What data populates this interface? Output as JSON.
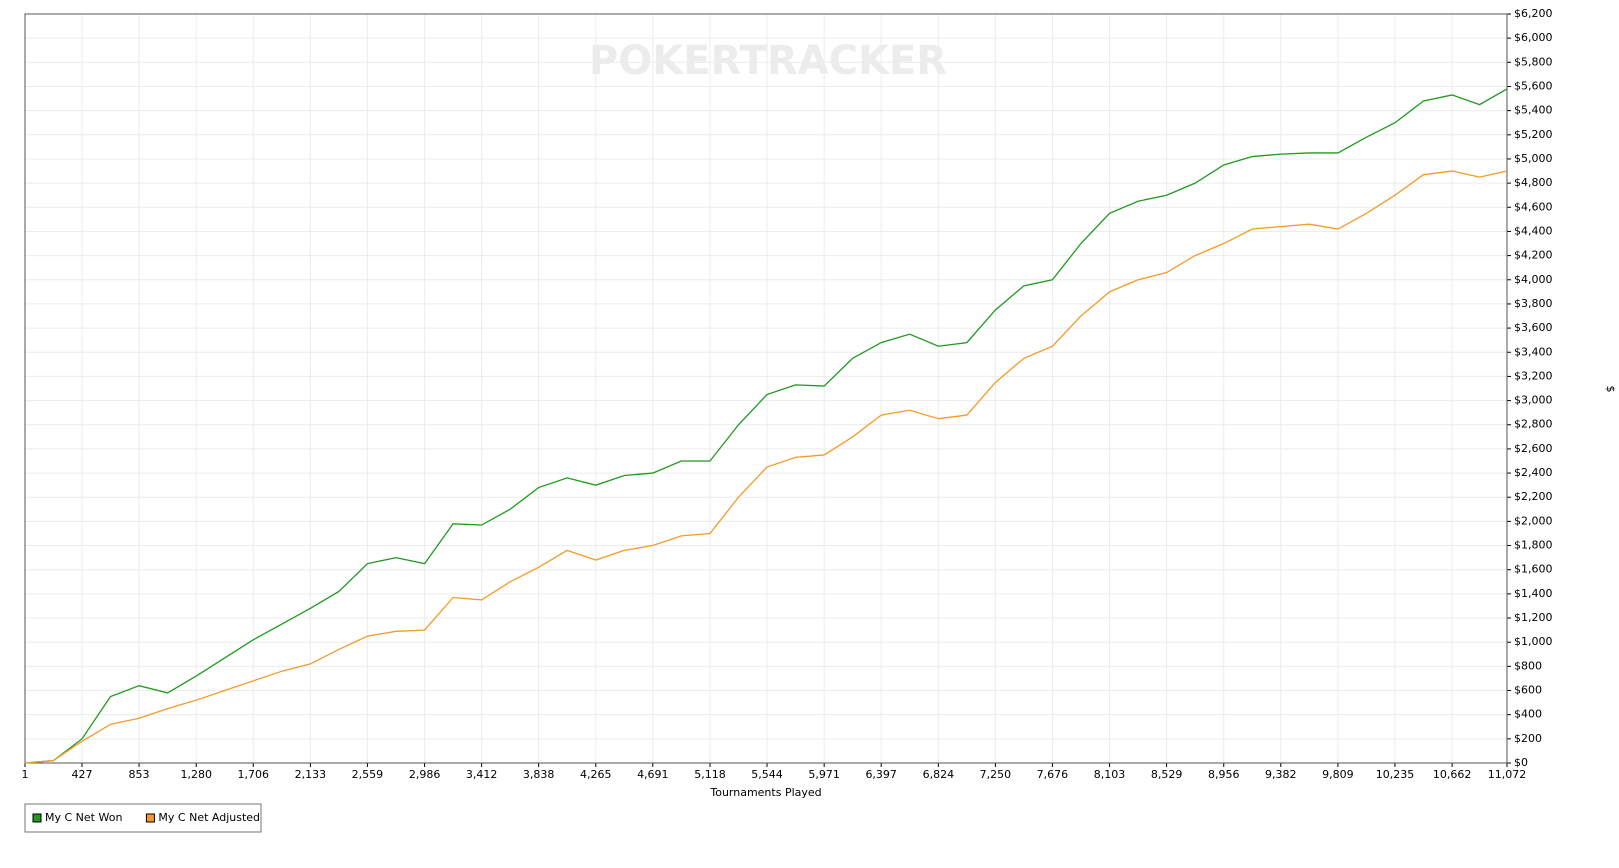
{
  "chart_data": {
    "type": "line",
    "watermark": "POKERTRACKER",
    "x_label": "Tournaments Played",
    "y_label": "$",
    "grid": true,
    "legend": "bottom-left",
    "x": [
      1,
      213,
      427,
      640,
      853,
      1066,
      1280,
      1493,
      1706,
      1920,
      2133,
      2346,
      2559,
      2772,
      2986,
      3199,
      3412,
      3625,
      3838,
      4051,
      4265,
      4478,
      4691,
      4904,
      5118,
      5331,
      5544,
      5757,
      5971,
      6184,
      6397,
      6610,
      6824,
      7037,
      7250,
      7463,
      7676,
      7889,
      8103,
      8316,
      8529,
      8742,
      8956,
      9169,
      9382,
      9595,
      9809,
      10022,
      10235,
      10448,
      10662,
      10867,
      11072
    ],
    "series": [
      {
        "name": "My C Net Won",
        "color": "#1f9a1f",
        "values": [
          0,
          20,
          200,
          550,
          640,
          580,
          720,
          870,
          1020,
          1150,
          1280,
          1420,
          1650,
          1700,
          1650,
          1980,
          1970,
          2100,
          2280,
          2360,
          2300,
          2380,
          2400,
          2500,
          2500,
          2800,
          3050,
          3130,
          3120,
          3350,
          3480,
          3550,
          3450,
          3480,
          3750,
          3950,
          4000,
          4300,
          4550,
          4650,
          4700,
          4800,
          4950,
          5020,
          5040,
          5050,
          5050,
          5180,
          5300,
          5480,
          5530,
          5450,
          5580
        ]
      },
      {
        "name": "My C Net Adjusted",
        "color": "#f59a2a",
        "values": [
          0,
          20,
          180,
          320,
          370,
          450,
          520,
          600,
          680,
          760,
          820,
          940,
          1050,
          1090,
          1100,
          1370,
          1350,
          1500,
          1620,
          1760,
          1680,
          1760,
          1800,
          1880,
          1900,
          2200,
          2450,
          2530,
          2550,
          2700,
          2880,
          2920,
          2850,
          2880,
          3150,
          3350,
          3450,
          3700,
          3900,
          4000,
          4060,
          4200,
          4300,
          4420,
          4440,
          4460,
          4420,
          4550,
          4700,
          4870,
          4900,
          4850,
          4900
        ]
      }
    ],
    "xlim": [
      1,
      11072
    ],
    "xticks": [
      1,
      427,
      853,
      {
        "value": 1280,
        "label": "1,280"
      },
      {
        "value": 1706,
        "label": "1,706"
      },
      {
        "value": 2133,
        "label": "2,133"
      },
      {
        "value": 2559,
        "label": "2,559"
      },
      {
        "value": 2986,
        "label": "2,986"
      },
      {
        "value": 3412,
        "label": "3,412"
      },
      {
        "value": 3838,
        "label": "3,838"
      },
      {
        "value": 4265,
        "label": "4,265"
      },
      {
        "value": 4691,
        "label": "4,691"
      },
      {
        "value": 5118,
        "label": "5,118"
      },
      {
        "value": 5544,
        "label": "5,544"
      },
      {
        "value": 5971,
        "label": "5,971"
      },
      {
        "value": 6397,
        "label": "6,397"
      },
      {
        "value": 6824,
        "label": "6,824"
      },
      {
        "value": 7250,
        "label": "7,250"
      },
      {
        "value": 7676,
        "label": "7,676"
      },
      {
        "value": 8103,
        "label": "8,103"
      },
      {
        "value": 8529,
        "label": "8,529"
      },
      {
        "value": 8956,
        "label": "8,956"
      },
      {
        "value": 9382,
        "label": "9,382"
      },
      {
        "value": 9809,
        "label": "9,809"
      },
      {
        "value": 10235,
        "label": "10,235"
      },
      {
        "value": 10662,
        "label": "10,662"
      },
      {
        "value": 11072,
        "label": "11,072"
      }
    ],
    "ylim": [
      0,
      6200
    ],
    "yticks": [
      {
        "value": 0,
        "label": "$0"
      },
      {
        "value": 200,
        "label": "$200"
      },
      {
        "value": 400,
        "label": "$400"
      },
      {
        "value": 600,
        "label": "$600"
      },
      {
        "value": 800,
        "label": "$800"
      },
      {
        "value": 1000,
        "label": "$1,000"
      },
      {
        "value": 1200,
        "label": "$1,200"
      },
      {
        "value": 1400,
        "label": "$1,400"
      },
      {
        "value": 1600,
        "label": "$1,600"
      },
      {
        "value": 1800,
        "label": "$1,800"
      },
      {
        "value": 2000,
        "label": "$2,000"
      },
      {
        "value": 2200,
        "label": "$2,200"
      },
      {
        "value": 2400,
        "label": "$2,400"
      },
      {
        "value": 2600,
        "label": "$2,600"
      },
      {
        "value": 2800,
        "label": "$2,800"
      },
      {
        "value": 3000,
        "label": "$3,000"
      },
      {
        "value": 3200,
        "label": "$3,200"
      },
      {
        "value": 3400,
        "label": "$3,400"
      },
      {
        "value": 3600,
        "label": "$3,600"
      },
      {
        "value": 3800,
        "label": "$3,800"
      },
      {
        "value": 4000,
        "label": "$4,000"
      },
      {
        "value": 4200,
        "label": "$4,200"
      },
      {
        "value": 4400,
        "label": "$4,400"
      },
      {
        "value": 4600,
        "label": "$4,600"
      },
      {
        "value": 4800,
        "label": "$4,800"
      },
      {
        "value": 5000,
        "label": "$5,000"
      },
      {
        "value": 5200,
        "label": "$5,200"
      },
      {
        "value": 5400,
        "label": "$5,400"
      },
      {
        "value": 5600,
        "label": "$5,600"
      },
      {
        "value": 5800,
        "label": "$5,800"
      },
      {
        "value": 6000,
        "label": "$6,000"
      },
      {
        "value": 6200,
        "label": "$6,200"
      }
    ]
  }
}
